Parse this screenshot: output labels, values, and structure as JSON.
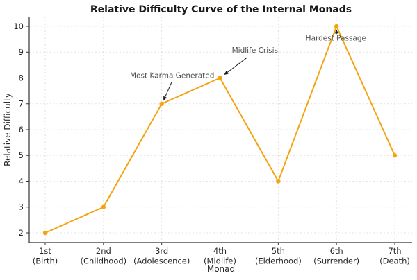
{
  "chart_data": {
    "type": "line",
    "title": "Relative Difficulty Curve of the Internal Monads",
    "xlabel": "Monad",
    "ylabel": "Relative Difficulty",
    "categories": [
      {
        "ordinal": "1st",
        "phase": "(Birth)"
      },
      {
        "ordinal": "2nd",
        "phase": "(Childhood)"
      },
      {
        "ordinal": "3rd",
        "phase": "(Adolescence)"
      },
      {
        "ordinal": "4th",
        "phase": "(Midlife)"
      },
      {
        "ordinal": "5th",
        "phase": "(Elderhood)"
      },
      {
        "ordinal": "6th",
        "phase": "(Surrender)"
      },
      {
        "ordinal": "7th",
        "phase": "(Death)"
      }
    ],
    "values": [
      2,
      3,
      7,
      8,
      4,
      10,
      5
    ],
    "yticks": [
      2,
      3,
      4,
      5,
      6,
      7,
      8,
      9,
      10
    ],
    "ylim": [
      1.62,
      10.38
    ],
    "grid": true,
    "legend": false,
    "annotations": [
      {
        "text": "Most Karma Generated",
        "target": {
          "x": 2,
          "y": 7
        },
        "text_pos": {
          "x": 2.18,
          "y": 8.1
        },
        "arrow_from": {
          "x": 2.17,
          "y": 7.83
        },
        "arrow_to": {
          "x": 2.03,
          "y": 7.12
        }
      },
      {
        "text": "Midlife Crisis",
        "target": {
          "x": 3,
          "y": 8
        },
        "text_pos": {
          "x": 3.6,
          "y": 9.08
        },
        "arrow_from": {
          "x": 3.47,
          "y": 8.8
        },
        "arrow_to": {
          "x": 3.07,
          "y": 8.12
        }
      },
      {
        "text": "Hardest Passage",
        "target": {
          "x": 5,
          "y": 10
        },
        "text_pos": {
          "x": 4.99,
          "y": 9.55
        },
        "arrow_from": {
          "x": 5.0,
          "y": 9.7
        },
        "arrow_to": {
          "x": 5.0,
          "y": 9.88
        }
      }
    ],
    "colors": {
      "line": "#F4A410",
      "marker": "#F4A410",
      "grid": "#DBDBDB",
      "axis": "#333333",
      "tick_label": "#262626",
      "title": "#1A1A1A",
      "annotation_text": "#4D4D4D",
      "arrow": "#1A1A1A"
    }
  }
}
